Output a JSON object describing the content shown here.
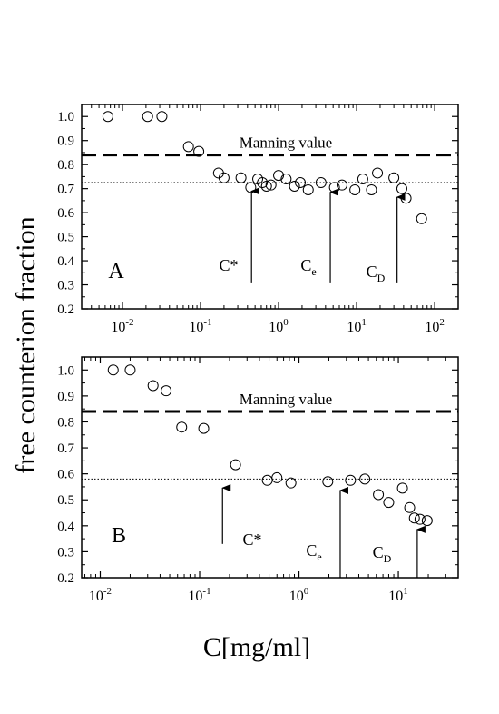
{
  "ylabel": "free counterion fraction",
  "xlabel": "C[mg/ml]",
  "chart_data": [
    {
      "type": "scatter",
      "panel_label": "A",
      "x_scale": "log",
      "xlim": [
        0.003,
        200
      ],
      "ylim": [
        0.2,
        1.05
      ],
      "x_tick_decades": [
        {
          "base": "10",
          "exp": "-2",
          "value": 0.01
        },
        {
          "base": "10",
          "exp": "-1",
          "value": 0.1
        },
        {
          "base": "10",
          "exp": "0",
          "value": 1
        },
        {
          "base": "10",
          "exp": "1",
          "value": 10
        },
        {
          "base": "10",
          "exp": "2",
          "value": 100
        }
      ],
      "y_ticks": [
        {
          "label": "0.2",
          "value": 0.2
        },
        {
          "label": "0.3",
          "value": 0.3
        },
        {
          "label": "0.4",
          "value": 0.4
        },
        {
          "label": "0.5",
          "value": 0.5
        },
        {
          "label": "0.6",
          "value": 0.6
        },
        {
          "label": "0.7",
          "value": 0.7
        },
        {
          "label": "0.8",
          "value": 0.8
        },
        {
          "label": "0.9",
          "value": 0.9
        },
        {
          "label": "1.0",
          "value": 1.0
        }
      ],
      "manning": {
        "label": "Manning value",
        "value": 0.84
      },
      "plateau_value": 0.725,
      "points": [
        [
          0.0065,
          1.0
        ],
        [
          0.021,
          1.0
        ],
        [
          0.032,
          1.0
        ],
        [
          0.07,
          0.875
        ],
        [
          0.095,
          0.855
        ],
        [
          0.17,
          0.765
        ],
        [
          0.2,
          0.745
        ],
        [
          0.33,
          0.745
        ],
        [
          0.44,
          0.705
        ],
        [
          0.54,
          0.74
        ],
        [
          0.62,
          0.725
        ],
        [
          0.7,
          0.71
        ],
        [
          0.8,
          0.715
        ],
        [
          1.0,
          0.755
        ],
        [
          1.25,
          0.74
        ],
        [
          1.6,
          0.71
        ],
        [
          1.9,
          0.725
        ],
        [
          2.4,
          0.695
        ],
        [
          3.5,
          0.725
        ],
        [
          5.2,
          0.705
        ],
        [
          6.5,
          0.715
        ],
        [
          9.5,
          0.695
        ],
        [
          12.0,
          0.74
        ],
        [
          15.5,
          0.695
        ],
        [
          18.5,
          0.765
        ],
        [
          30.0,
          0.745
        ],
        [
          38.0,
          0.7
        ],
        [
          43.0,
          0.66
        ],
        [
          68.0,
          0.575
        ]
      ],
      "annotations": [
        {
          "main": "C*",
          "sub": "",
          "arrow_x": 0.45,
          "arrow_y_from": 0.31,
          "arrow_y_to": 0.705
        },
        {
          "main": "C",
          "sub": "e",
          "arrow_x": 4.6,
          "arrow_y_from": 0.31,
          "arrow_y_to": 0.7
        },
        {
          "main": "C",
          "sub": "D",
          "arrow_x": 33.0,
          "arrow_y_from": 0.31,
          "arrow_y_to": 0.68
        }
      ]
    },
    {
      "type": "scatter",
      "panel_label": "B",
      "x_scale": "log",
      "xlim": [
        0.0065,
        40
      ],
      "ylim": [
        0.2,
        1.05
      ],
      "x_tick_decades": [
        {
          "base": "10",
          "exp": "-2",
          "value": 0.01
        },
        {
          "base": "10",
          "exp": "-1",
          "value": 0.1
        },
        {
          "base": "10",
          "exp": "0",
          "value": 1
        },
        {
          "base": "10",
          "exp": "1",
          "value": 10
        }
      ],
      "y_ticks": [
        {
          "label": "0.2",
          "value": 0.2
        },
        {
          "label": "0.3",
          "value": 0.3
        },
        {
          "label": "0.4",
          "value": 0.4
        },
        {
          "label": "0.5",
          "value": 0.5
        },
        {
          "label": "0.6",
          "value": 0.6
        },
        {
          "label": "0.7",
          "value": 0.7
        },
        {
          "label": "0.8",
          "value": 0.8
        },
        {
          "label": "0.9",
          "value": 0.9
        },
        {
          "label": "1.0",
          "value": 1.0
        }
      ],
      "manning": {
        "label": "Manning value",
        "value": 0.84
      },
      "plateau_value": 0.58,
      "points": [
        [
          0.0135,
          1.0
        ],
        [
          0.02,
          1.0
        ],
        [
          0.034,
          0.94
        ],
        [
          0.046,
          0.92
        ],
        [
          0.066,
          0.78
        ],
        [
          0.11,
          0.775
        ],
        [
          0.23,
          0.635
        ],
        [
          0.48,
          0.575
        ],
        [
          0.6,
          0.585
        ],
        [
          0.83,
          0.565
        ],
        [
          1.95,
          0.57
        ],
        [
          3.3,
          0.575
        ],
        [
          4.6,
          0.58
        ],
        [
          6.3,
          0.52
        ],
        [
          8.0,
          0.49
        ],
        [
          11.0,
          0.545
        ],
        [
          13.0,
          0.47
        ],
        [
          14.5,
          0.43
        ],
        [
          16.5,
          0.425
        ],
        [
          19.5,
          0.42
        ]
      ],
      "annotations": [
        {
          "main": "C*",
          "sub": "",
          "arrow_x": 0.17,
          "arrow_y_from": 0.33,
          "arrow_y_to": 0.56
        },
        {
          "main": "C",
          "sub": "e",
          "arrow_x": 2.6,
          "arrow_y_from": 0.2,
          "arrow_y_to": 0.55
        },
        {
          "main": "C",
          "sub": "D",
          "arrow_x": 15.5,
          "arrow_y_from": 0.2,
          "arrow_y_to": 0.4
        }
      ]
    }
  ]
}
